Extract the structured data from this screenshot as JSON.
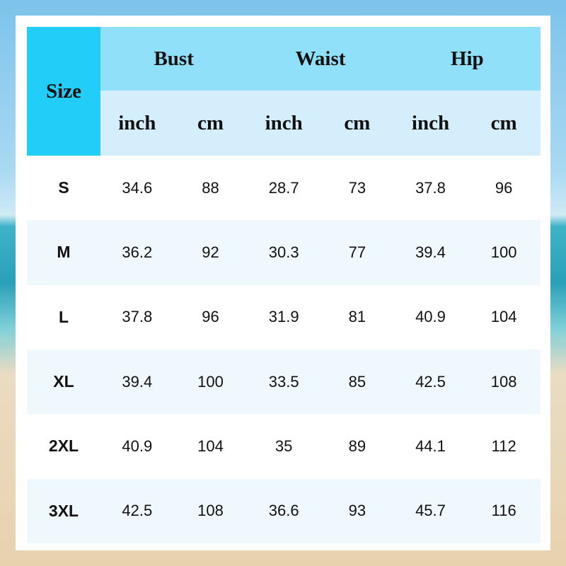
{
  "table": {
    "size_header": "Size",
    "groups": [
      "Bust",
      "Waist",
      "Hip"
    ],
    "units": [
      "inch",
      "cm",
      "inch",
      "cm",
      "inch",
      "cm"
    ],
    "rows": [
      [
        "S",
        34.6,
        88,
        28.7,
        73,
        37.8,
        96
      ],
      [
        "M",
        36.2,
        92,
        30.3,
        77,
        39.4,
        100
      ],
      [
        "L",
        37.8,
        96,
        31.9,
        81,
        40.9,
        104
      ],
      [
        "XL",
        39.4,
        100,
        33.5,
        85,
        42.5,
        108
      ],
      [
        "2XL",
        40.9,
        104,
        35,
        89,
        44.1,
        112
      ],
      [
        "3XL",
        42.5,
        108,
        36.6,
        93,
        45.7,
        116
      ]
    ]
  }
}
